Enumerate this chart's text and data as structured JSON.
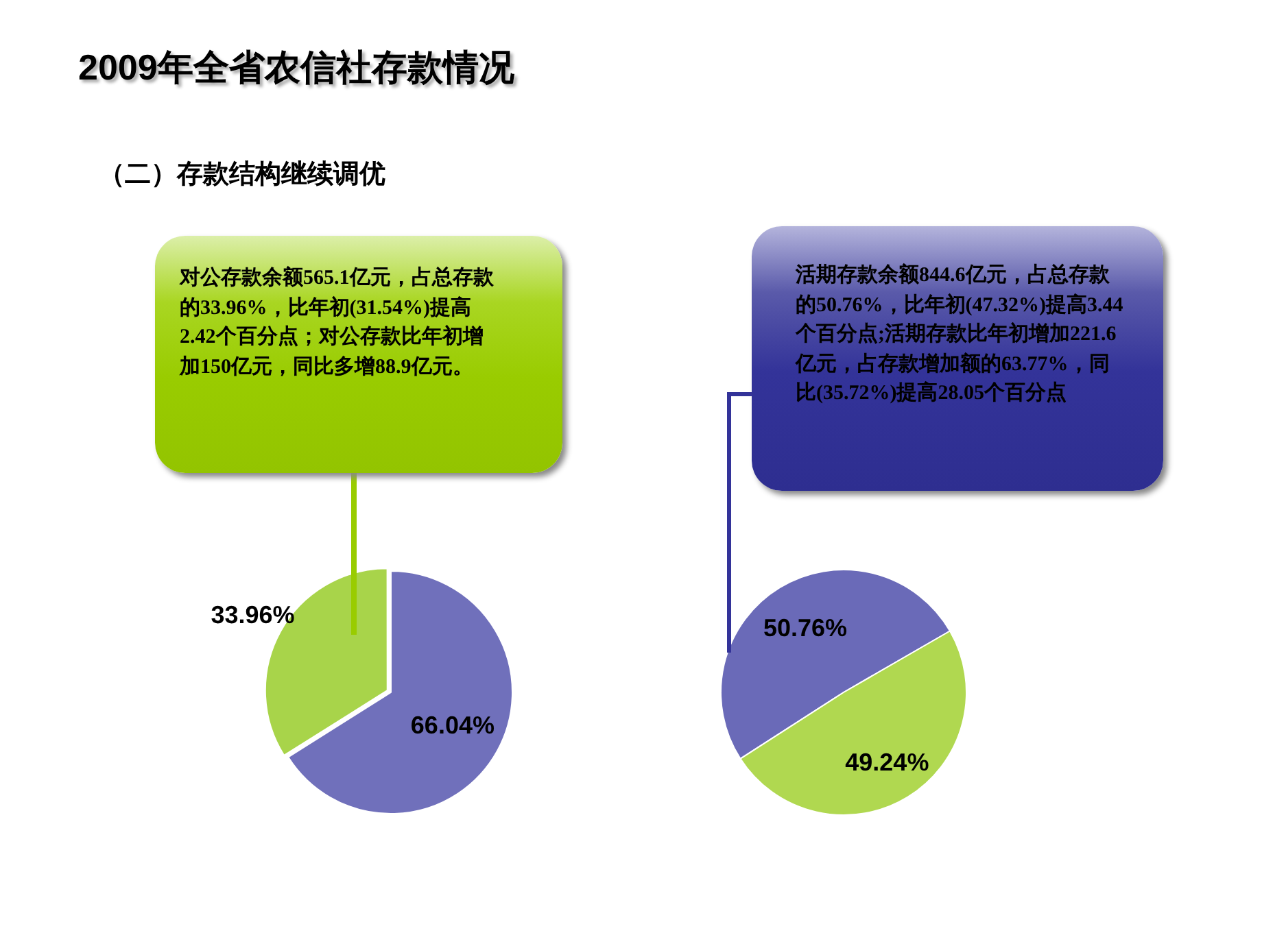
{
  "chart_data": [
    {
      "type": "pie",
      "title": "2009年全省农信社存款情况",
      "subtitle": "（二）存款结构继续调优",
      "categories": [
        null,
        null
      ],
      "values": [
        33.96,
        66.04
      ],
      "colors": [
        "#a8d44a",
        "#7070bb"
      ],
      "value_labels": [
        "33.96%",
        "66.04%"
      ],
      "annotations": [
        "对公存款余额565.1亿元，占总存款的33.96%，比年初(31.54%)提高2.42个百分点；对公存款比年初增加150亿元，同比多增88.9亿元。"
      ]
    },
    {
      "type": "pie",
      "categories": [
        null,
        null
      ],
      "values": [
        50.76,
        49.24
      ],
      "colors": [
        "#6a6ab8",
        "#b0d850"
      ],
      "value_labels": [
        "50.76%",
        "49.24%"
      ],
      "annotations": [
        "活期存款余额844.6亿元，占总存款的50.76%，比年初(47.32%)提高3.44个百分点;活期存款比年初增加221.6亿元，占存款增加额的63.77%，同比(35.72%)提高28.05个百分点"
      ]
    }
  ]
}
